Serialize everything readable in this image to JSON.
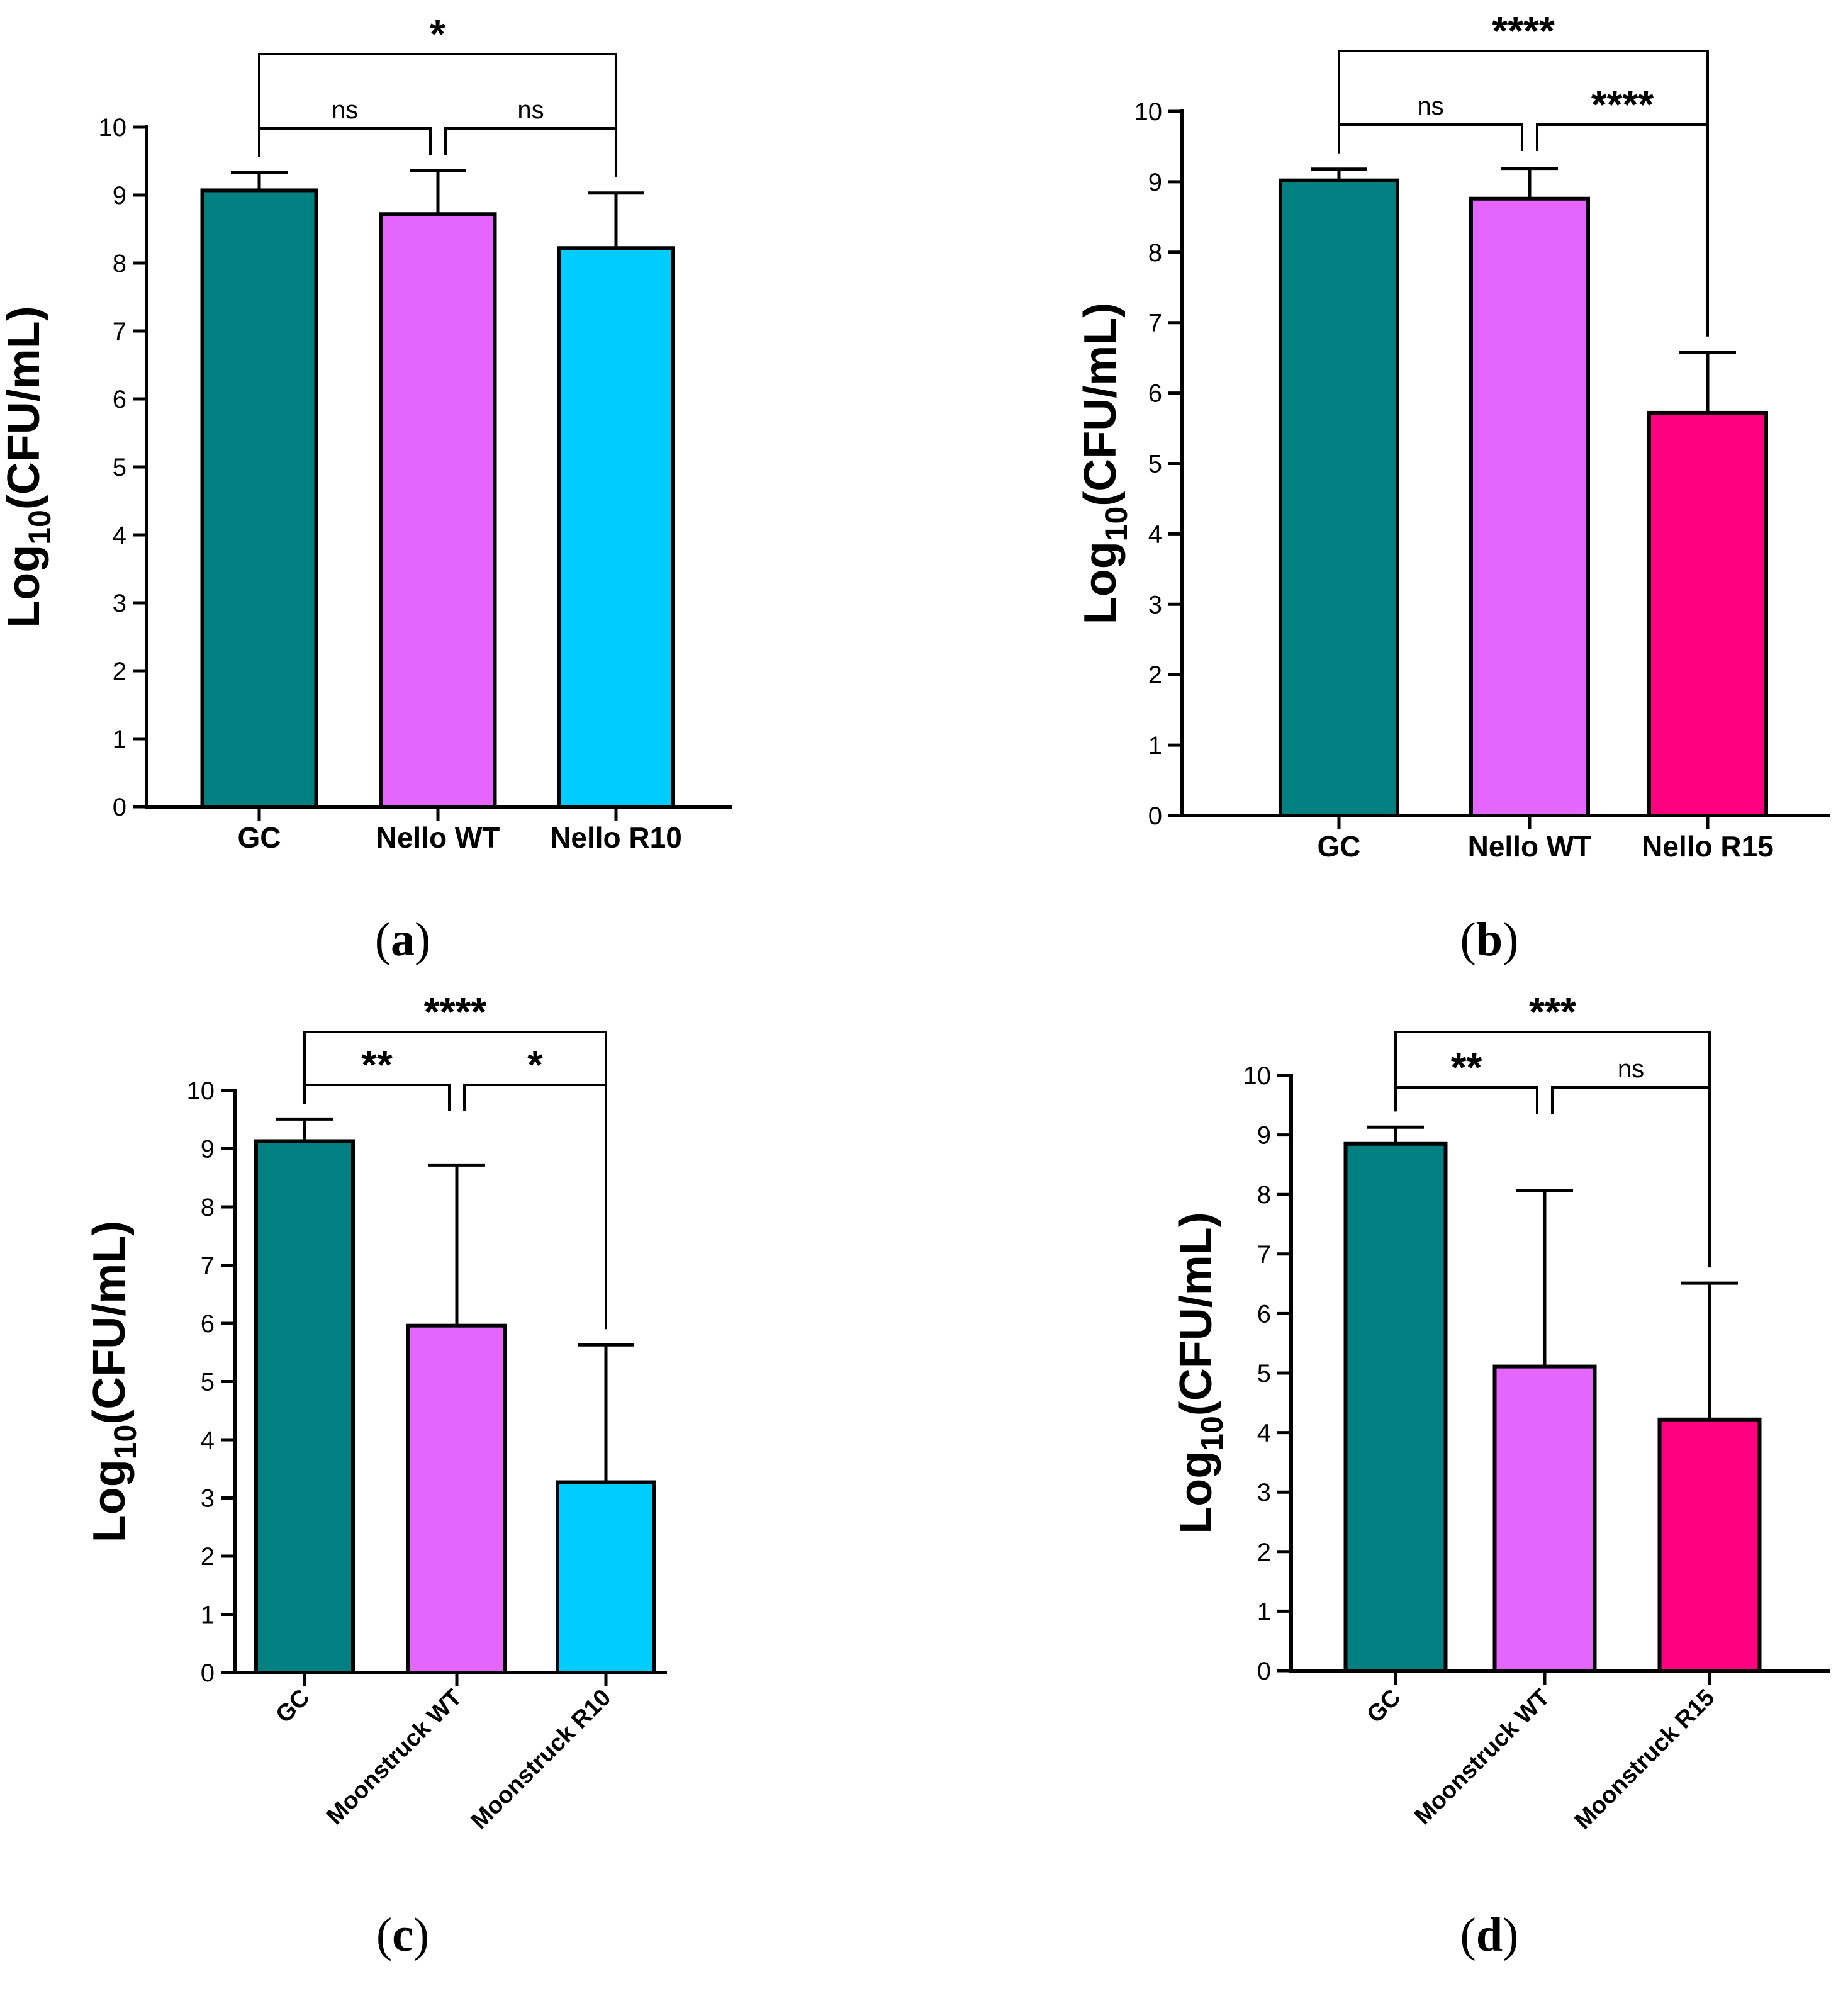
{
  "figure": {
    "ylabel_base": "Log",
    "ylabel_sub": "10",
    "ylabel_rest": "(CFU/mL)"
  },
  "colors": {
    "GC": "#008080",
    "WT": "#E566FF",
    "R10": "#00CCFF",
    "R15": "#FF0080"
  },
  "chart_data": [
    {
      "panel": "(a)",
      "type": "bar",
      "categories": [
        "GC",
        "Nello WT",
        "Nello R10"
      ],
      "values": [
        9.07,
        8.72,
        8.22
      ],
      "error_upper": [
        9.33,
        9.36,
        9.03
      ],
      "bar_colors": [
        "#008080",
        "#E566FF",
        "#00CCFF"
      ],
      "ylabel": "Log10(CFU/mL)",
      "ylim": [
        0,
        10
      ],
      "yticks": [
        0,
        1,
        2,
        3,
        4,
        5,
        6,
        7,
        8,
        9,
        10
      ],
      "xtick_rotation": 0,
      "grid": false,
      "significance": [
        {
          "pair": [
            0,
            1
          ],
          "label": "ns"
        },
        {
          "pair": [
            1,
            2
          ],
          "label": "ns"
        },
        {
          "pair": [
            0,
            2
          ],
          "label": "*"
        }
      ]
    },
    {
      "panel": "(b)",
      "type": "bar",
      "categories": [
        "GC",
        "Nello WT",
        "Nello R15"
      ],
      "values": [
        9.02,
        8.76,
        5.72
      ],
      "error_upper": [
        9.18,
        9.19,
        6.58
      ],
      "bar_colors": [
        "#008080",
        "#E566FF",
        "#FF0080"
      ],
      "ylabel": "Log10(CFU/mL)",
      "ylim": [
        0,
        10
      ],
      "yticks": [
        0,
        1,
        2,
        3,
        4,
        5,
        6,
        7,
        8,
        9,
        10
      ],
      "xtick_rotation": 0,
      "grid": false,
      "significance": [
        {
          "pair": [
            0,
            1
          ],
          "label": "ns"
        },
        {
          "pair": [
            1,
            2
          ],
          "label": "****"
        },
        {
          "pair": [
            0,
            2
          ],
          "label": "****"
        }
      ]
    },
    {
      "panel": "(c)",
      "type": "bar",
      "categories": [
        "GC",
        "Moonstruck WT",
        "Moonstruck R10"
      ],
      "values": [
        9.13,
        5.96,
        3.27
      ],
      "error_upper": [
        9.51,
        8.72,
        5.63
      ],
      "bar_colors": [
        "#008080",
        "#E566FF",
        "#00CCFF"
      ],
      "ylabel": "Log10(CFU/mL)",
      "ylim": [
        0,
        10
      ],
      "yticks": [
        0,
        1,
        2,
        3,
        4,
        5,
        6,
        7,
        8,
        9,
        10
      ],
      "xtick_rotation": -45,
      "grid": false,
      "significance": [
        {
          "pair": [
            0,
            1
          ],
          "label": "**"
        },
        {
          "pair": [
            1,
            2
          ],
          "label": "*"
        },
        {
          "pair": [
            0,
            2
          ],
          "label": "****"
        }
      ]
    },
    {
      "panel": "(d)",
      "type": "bar",
      "categories": [
        "GC",
        "Moonstruck WT",
        "Moonstruck R15"
      ],
      "values": [
        8.85,
        5.11,
        4.22
      ],
      "error_upper": [
        9.13,
        8.06,
        6.51
      ],
      "bar_colors": [
        "#008080",
        "#E566FF",
        "#FF0080"
      ],
      "ylabel": "Log10(CFU/mL)",
      "ylim": [
        0,
        10
      ],
      "yticks": [
        0,
        1,
        2,
        3,
        4,
        5,
        6,
        7,
        8,
        9,
        10
      ],
      "xtick_rotation": -45,
      "grid": false,
      "significance": [
        {
          "pair": [
            0,
            1
          ],
          "label": "**"
        },
        {
          "pair": [
            1,
            2
          ],
          "label": "ns"
        },
        {
          "pair": [
            0,
            2
          ],
          "label": "***"
        }
      ]
    }
  ]
}
